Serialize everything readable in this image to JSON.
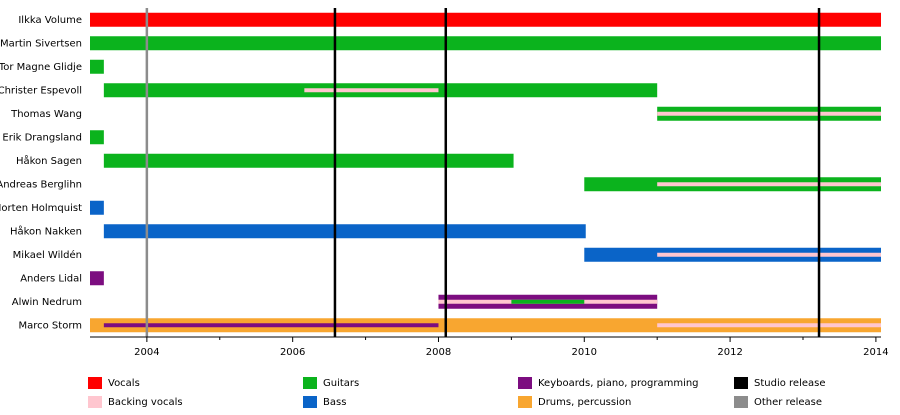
{
  "chart_data": {
    "type": "timeline",
    "categories": [
      "Ilkka Volume",
      "Martin Sivertsen",
      "Tor Magne Glidje",
      "Christer Espevoll",
      "Thomas Wang",
      "Erik Drangsland",
      "Håkon Sagen",
      "Andreas Berglihn",
      "Morten Holmquist",
      "Håkon Nakken",
      "Mikael Wildén",
      "Anders Lidal",
      "Alwin Nedrum",
      "Marco Storm"
    ],
    "series": [
      {
        "name": "Vocals",
        "color": "#ff0000",
        "values": [
          [
            {
              "from": 2003.22,
              "to": 2014.07
            }
          ],
          [],
          [],
          [],
          [],
          [],
          [],
          [],
          [],
          [],
          [],
          [],
          [],
          []
        ]
      },
      {
        "name": "Backing vocals",
        "color": "#ffc6cf",
        "values": [
          [],
          [],
          [],
          [
            {
              "from": 2006.16,
              "to": 2008.0,
              "stripe": true
            }
          ],
          [
            {
              "from": 2011.0,
              "to": 2014.07,
              "stripe": true
            }
          ],
          [],
          [],
          [
            {
              "from": 2011.0,
              "to": 2014.07,
              "stripe": true
            }
          ],
          [],
          [],
          [
            {
              "from": 2011.0,
              "to": 2014.07,
              "stripe": true
            }
          ],
          [],
          [
            {
              "from": 2008.0,
              "to": 2011.0,
              "stripe": true
            }
          ],
          [
            {
              "from": 2011.0,
              "to": 2014.07,
              "stripe": true
            }
          ]
        ]
      },
      {
        "name": "Guitars",
        "color": "#0bb31d",
        "values": [
          [],
          [
            {
              "from": 2003.22,
              "to": 2014.07
            }
          ],
          [
            {
              "from": 2003.22,
              "to": 2003.41
            }
          ],
          [
            {
              "from": 2003.41,
              "to": 2011.0
            }
          ],
          [
            {
              "from": 2011.0,
              "to": 2014.07
            }
          ],
          [
            {
              "from": 2003.22,
              "to": 2003.41
            }
          ],
          [
            {
              "from": 2003.41,
              "to": 2009.03
            }
          ],
          [
            {
              "from": 2010.0,
              "to": 2014.07
            }
          ],
          [],
          [],
          [],
          [],
          [
            {
              "from": 2009.0,
              "to": 2010.0,
              "stripe": true
            }
          ],
          []
        ]
      },
      {
        "name": "Bass",
        "color": "#0a64c8",
        "values": [
          [],
          [],
          [],
          [],
          [],
          [],
          [],
          [],
          [
            {
              "from": 2003.22,
              "to": 2003.41
            }
          ],
          [
            {
              "from": 2003.41,
              "to": 2010.02
            }
          ],
          [
            {
              "from": 2010.0,
              "to": 2014.07
            }
          ],
          [],
          [],
          []
        ]
      },
      {
        "name": "Keyboards, piano, programming",
        "color": "#7c0d80",
        "values": [
          [],
          [],
          [],
          [],
          [],
          [],
          [],
          [],
          [],
          [],
          [],
          [
            {
              "from": 2003.22,
              "to": 2003.41
            }
          ],
          [
            {
              "from": 2008.0,
              "to": 2011.0
            }
          ],
          [
            {
              "from": 2003.41,
              "to": 2008.0,
              "stripe": true
            }
          ]
        ]
      },
      {
        "name": "Drums, percussion",
        "color": "#f8a630",
        "values": [
          [],
          [],
          [],
          [],
          [],
          [],
          [],
          [],
          [],
          [],
          [],
          [],
          [],
          [
            {
              "from": 2003.22,
              "to": 2014.07
            }
          ]
        ]
      }
    ],
    "events": [
      {
        "name": "Studio release",
        "color": "#000000",
        "x": [
          2006.58,
          2008.1,
          2013.22
        ]
      },
      {
        "name": "Other release",
        "color": "#8c8c8c",
        "x": [
          2004.0
        ]
      }
    ],
    "xlim": [
      2003.22,
      2014.07
    ],
    "xticks": [
      2004,
      2006,
      2008,
      2010,
      2012,
      2014
    ],
    "minor_xticks": [
      2005,
      2007,
      2009,
      2011,
      2013
    ]
  }
}
